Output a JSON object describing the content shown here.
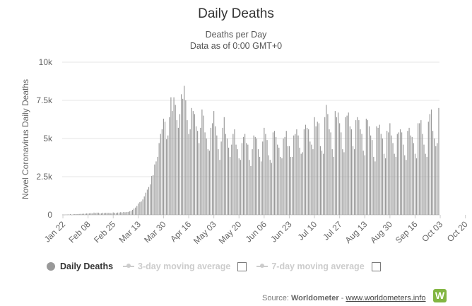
{
  "title": "Daily Deaths",
  "subtitle_1": "Deaths per Day",
  "subtitle_2": "Data as of 0:00 GMT+0",
  "legend": {
    "daily": "Daily Deaths",
    "ma3": "3-day moving average",
    "ma7": "7-day moving average"
  },
  "source": {
    "prefix": "Source:",
    "name": "Worldometer",
    "separator": "-",
    "link": "www.worldometers.info",
    "logo_letter": "W"
  },
  "colors": {
    "bar": "#999999",
    "grid": "#e6e6e6",
    "axis_text": "#666666",
    "legend_inactive": "#cccccc",
    "logo": "#82b541"
  },
  "chart_data": {
    "type": "bar",
    "title": "Daily Deaths",
    "subtitle": [
      "Deaths per Day",
      "Data as of 0:00 GMT+0"
    ],
    "ylabel": "Novel Coronavirus Daily Deaths",
    "xlabel": "",
    "ylim": [
      0,
      10000
    ],
    "yticks": [
      {
        "value": 0,
        "label": "0"
      },
      {
        "value": 2500,
        "label": "2.5k"
      },
      {
        "value": 5000,
        "label": "5k"
      },
      {
        "value": 7500,
        "label": "7.5k"
      },
      {
        "value": 10000,
        "label": "10k"
      }
    ],
    "start_date": "Jan 22",
    "xticks": [
      "Jan 22",
      "Feb 08",
      "Feb 25",
      "Mar 13",
      "Mar 30",
      "Apr 16",
      "May 03",
      "May 20",
      "Jun 06",
      "Jun 23",
      "Jul 10",
      "Jul 27",
      "Aug 13",
      "Aug 30",
      "Sep 16",
      "Oct 03",
      "Oct 20"
    ],
    "grid": true,
    "legend_position": "bottom-left",
    "series": [
      {
        "name": "Daily Deaths",
        "values": [
          17,
          8,
          16,
          14,
          26,
          49,
          2,
          38,
          42,
          46,
          45,
          57,
          64,
          65,
          73,
          73,
          86,
          89,
          97,
          108,
          97,
          146,
          121,
          143,
          142,
          105,
          98,
          136,
          120,
          133,
          126,
          133,
          113,
          108,
          156,
          135,
          125,
          148,
          150,
          175,
          152,
          185,
          166,
          181,
          185,
          226,
          252,
          327,
          409,
          475,
          580,
          744,
          830,
          880,
          1008,
          1206,
          1450,
          1650,
          1820,
          2000,
          2550,
          2600,
          3300,
          3500,
          3800,
          4700,
          5300,
          5600,
          6300,
          6100,
          4950,
          5200,
          6400,
          7700,
          6800,
          7700,
          7200,
          6200,
          5700,
          6600,
          7900,
          7600,
          8450,
          7500,
          6200,
          5300,
          5600,
          7000,
          6800,
          6600,
          5800,
          5500,
          4700,
          5700,
          6900,
          6500,
          5400,
          5000,
          4300,
          4200,
          5700,
          6000,
          6800,
          5800,
          5200,
          4300,
          3600,
          4800,
          5700,
          6400,
          5300,
          5000,
          4400,
          3800,
          4600,
          5300,
          5600,
          4600,
          4300,
          3700,
          3600,
          4700,
          5100,
          5300,
          4700,
          4600,
          3600,
          3200,
          4300,
          5200,
          5100,
          5000,
          4300,
          3800,
          3500,
          4800,
          5700,
          5300,
          4900,
          3900,
          3600,
          3400,
          5400,
          5500,
          5100,
          4600,
          4400,
          3800,
          3700,
          5000,
          5100,
          5500,
          4500,
          4500,
          3800,
          3800,
          5200,
          5300,
          5600,
          5200,
          4400,
          4000,
          4100,
          5600,
          5900,
          5700,
          5600,
          4800,
          4600,
          4300,
          6400,
          5800,
          6100,
          6000,
          4500,
          4200,
          4000,
          6400,
          7200,
          6600,
          5600,
          5400,
          4300,
          3800,
          6800,
          6400,
          6700,
          6000,
          5400,
          4300,
          4100,
          6400,
          6500,
          6700,
          5800,
          5600,
          4500,
          4300,
          6200,
          6400,
          6200,
          5600,
          5300,
          4200,
          3900,
          6300,
          6200,
          5800,
          5200,
          4900,
          3800,
          3500,
          5800,
          5700,
          5900,
          5300,
          5000,
          4000,
          3700,
          5500,
          5400,
          6000,
          5200,
          4700,
          4000,
          3800,
          5300,
          5400,
          5600,
          5400,
          4600,
          3900,
          3600,
          5500,
          5700,
          5200,
          5100,
          4700,
          4000,
          3700,
          6000,
          6000,
          6200,
          5300,
          4600,
          4000,
          3800,
          6100,
          6600,
          6900,
          5500,
          5000,
          4500,
          4700,
          7000
        ]
      }
    ]
  }
}
